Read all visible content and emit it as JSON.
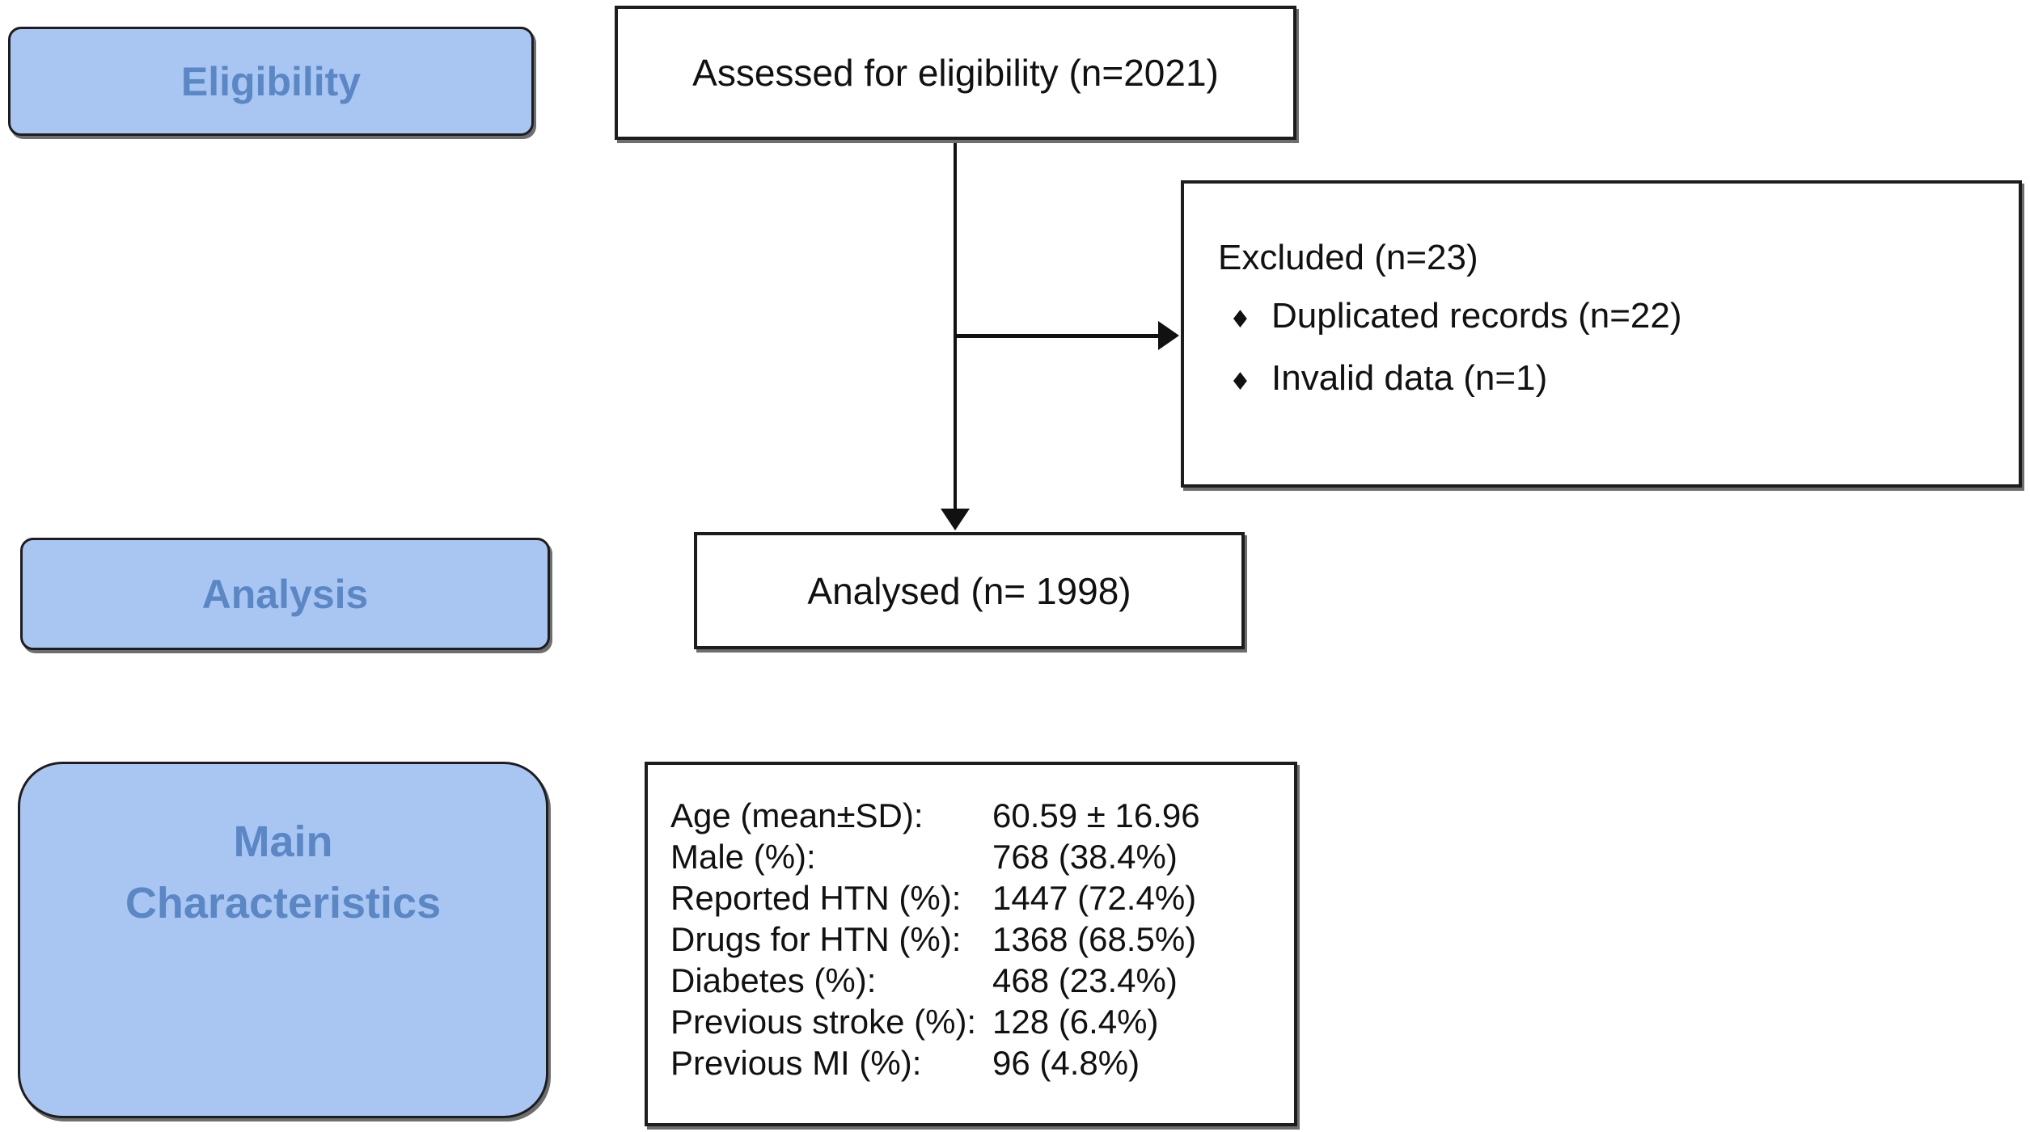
{
  "colors": {
    "stage_fill": "#a9c6f3",
    "stage_text": "#5b87c5",
    "box_border": "#1d1d1d",
    "box_fill": "#ffffff",
    "line": "#111111",
    "shadow": "#6e6e6e",
    "text": "#111111"
  },
  "stages": {
    "eligibility": {
      "label": "Eligibility"
    },
    "analysis": {
      "label": "Analysis"
    },
    "main_characteristics": {
      "label": "Main\nCharacteristics"
    }
  },
  "flow": {
    "assessed": {
      "text": "Assessed for eligibility (n=2021)"
    },
    "excluded": {
      "title": "Excluded (n=23)",
      "bullet_glyph": "♦",
      "items": [
        "Duplicated records (n=22)",
        "Invalid data (n=1)"
      ]
    },
    "analysed": {
      "text": "Analysed (n= 1998)"
    }
  },
  "characteristics": {
    "rows": [
      {
        "label": "Age (mean±SD):",
        "value": "60.59 ± 16.96"
      },
      {
        "label": "Male (%):",
        "value": "768 (38.4%)"
      },
      {
        "label": "Reported HTN (%):",
        "value": "1447 (72.4%)"
      },
      {
        "label": "Drugs for HTN (%):",
        "value": "1368 (68.5%)"
      },
      {
        "label": "Diabetes (%):",
        "value": "468 (23.4%)"
      },
      {
        "label": "Previous stroke (%):",
        "value": "128 (6.4%)"
      },
      {
        "label": "Previous MI (%):",
        "value": "96 (4.8%)"
      }
    ]
  }
}
